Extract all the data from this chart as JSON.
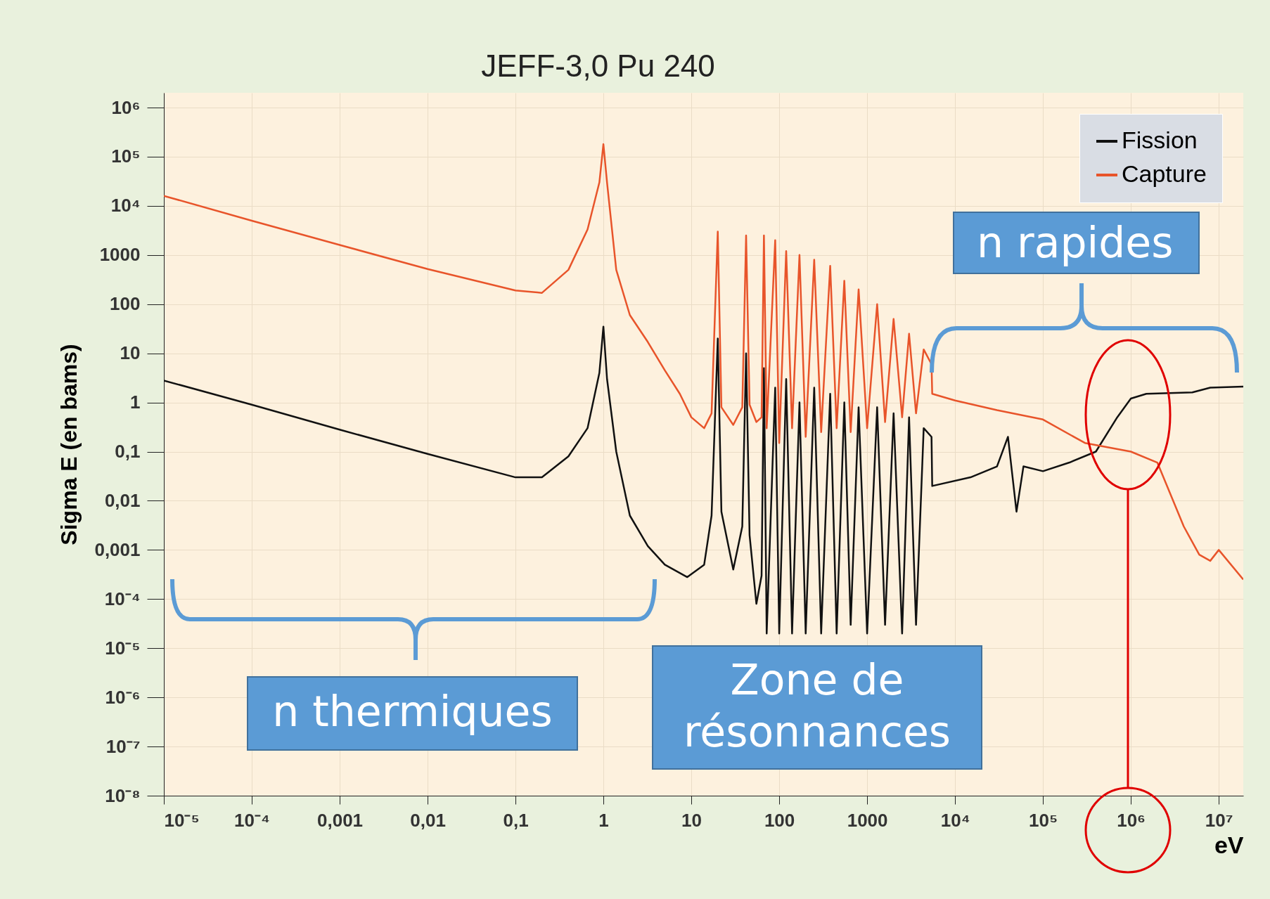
{
  "chart_data": {
    "type": "line",
    "title": "JEFF-3,0 Pu 240",
    "xlabel": "eV",
    "ylabel": "Sigma E (en bams)",
    "log": "xy",
    "grid": true,
    "legend": "top right",
    "xlim": [
      1e-05,
      19000000
    ],
    "ylim": [
      1e-08,
      2000000
    ],
    "xticks": [
      {
        "value": 1e-05,
        "label": "10⁻⁵"
      },
      {
        "value": 0.0001,
        "label": "10⁻⁴"
      },
      {
        "value": 0.001,
        "label": "0,001"
      },
      {
        "value": 0.01,
        "label": "0,01"
      },
      {
        "value": 0.1,
        "label": "0,1"
      },
      1,
      10,
      100,
      1000,
      {
        "value": 10000,
        "label": "10⁴"
      },
      {
        "value": 100000,
        "label": "10⁵"
      },
      {
        "value": 1000000,
        "label": "10⁶"
      },
      {
        "value": 10000000,
        "label": "10⁷"
      }
    ],
    "yticks": [
      {
        "value": 1e-08,
        "label": "10⁻⁸"
      },
      {
        "value": 1e-07,
        "label": "10⁻⁷"
      },
      {
        "value": 1e-06,
        "label": "10⁻⁶"
      },
      {
        "value": 1e-05,
        "label": "10⁻⁵"
      },
      {
        "value": 0.0001,
        "label": "10⁻⁴"
      },
      {
        "value": 0.001,
        "label": "0,001"
      },
      {
        "value": 0.01,
        "label": "0,01"
      },
      {
        "value": 0.1,
        "label": "0,1"
      },
      1,
      10,
      100,
      1000,
      {
        "value": 10000,
        "label": "10⁴"
      },
      {
        "value": 100000,
        "label": "10⁵"
      },
      {
        "value": 1000000,
        "label": "10⁶"
      }
    ],
    "annotations": [
      "n thermiques",
      "Zone de résonnances",
      {
        "text": "n rapides",
        "x": 5400,
        "y": 6
      }
    ],
    "series": [
      {
        "name": "Fission",
        "color": "#111111",
        "x": [
          1e-05,
          0.0001,
          0.001,
          0.01,
          0.1,
          0.2,
          0.4,
          0.66,
          0.9,
          1.0,
          1.1,
          1.4,
          2,
          3.2,
          5,
          9,
          14,
          17,
          20,
          22,
          30,
          38,
          42,
          46,
          55,
          63,
          67,
          72,
          90,
          100,
          120,
          140,
          170,
          200,
          250,
          300,
          380,
          450,
          550,
          650,
          800,
          1000,
          1300,
          1600,
          2000,
          2500,
          3000,
          3600,
          4400,
          5400,
          5500,
          15000,
          30000,
          40000,
          50000,
          60000,
          100000,
          200000,
          400000,
          700000,
          1000000,
          1500000,
          5000000,
          8000000,
          19000000
        ],
        "values": [
          2.8,
          0.9,
          0.28,
          0.09,
          0.03,
          0.03,
          0.08,
          0.3,
          4,
          35,
          3,
          0.1,
          0.005,
          0.0012,
          0.0005,
          0.00028,
          0.0005,
          0.005,
          20,
          0.006,
          0.0004,
          0.003,
          10,
          0.002,
          8e-05,
          0.0003,
          5,
          2e-05,
          2,
          2e-05,
          3,
          2e-05,
          1,
          2e-05,
          2,
          2e-05,
          1.5,
          2e-05,
          1,
          3e-05,
          0.8,
          2e-05,
          0.8,
          3e-05,
          0.6,
          2e-05,
          0.5,
          3e-05,
          0.3,
          0.2,
          0.02,
          0.03,
          0.05,
          0.2,
          0.006,
          0.05,
          0.04,
          0.06,
          0.1,
          0.5,
          1.2,
          1.5,
          1.6,
          2,
          2.1
        ]
      },
      {
        "name": "Capture",
        "color": "#e8542a",
        "x": [
          1e-05,
          0.0001,
          0.001,
          0.01,
          0.1,
          0.2,
          0.4,
          0.66,
          0.9,
          1.0,
          1.1,
          1.4,
          2,
          3.2,
          5,
          7.4,
          10,
          14,
          17,
          20,
          22,
          30,
          38,
          42,
          46,
          55,
          63,
          67,
          72,
          90,
          100,
          120,
          140,
          170,
          200,
          250,
          300,
          380,
          450,
          550,
          650,
          800,
          1000,
          1300,
          1600,
          2000,
          2500,
          3000,
          3600,
          4400,
          5400,
          5500,
          10000,
          30000,
          100000,
          300000,
          1000000,
          2000000,
          4000000,
          6000000,
          8000000,
          10000000,
          19000000
        ],
        "values": [
          16000,
          5000,
          1600,
          520,
          190,
          170,
          500,
          3300,
          30000,
          180000,
          30000,
          500,
          60,
          17,
          4.5,
          1.5,
          0.5,
          0.3,
          0.6,
          3000,
          0.8,
          0.35,
          0.8,
          2500,
          0.9,
          0.4,
          0.5,
          2500,
          0.3,
          2000,
          0.15,
          1200,
          0.3,
          1000,
          0.2,
          800,
          0.25,
          600,
          0.3,
          300,
          0.25,
          200,
          0.3,
          100,
          0.4,
          50,
          0.5,
          25,
          0.6,
          12,
          6,
          1.5,
          1.1,
          0.7,
          0.45,
          0.15,
          0.1,
          0.06,
          0.003,
          0.0008,
          0.0006,
          0.001,
          0.00025
        ]
      }
    ]
  }
}
